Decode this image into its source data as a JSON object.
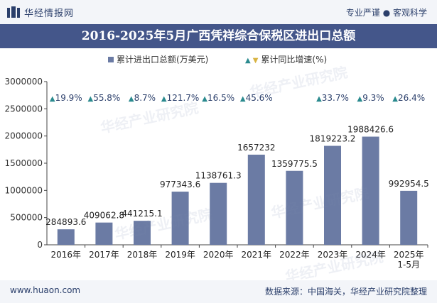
{
  "header": {
    "brand": "华经情报网",
    "slogan": "专业严谨 ● 客观科学"
  },
  "title": "2016-2025年5月广西凭祥综合保税区进出口总额",
  "legend": {
    "bar_label": "累计进出口总额(万美元)",
    "line_label": "累计同比增速(%)"
  },
  "footer": {
    "website": "www.huaon.com",
    "source": "数据来源：中国海关，华经产业研究院整理"
  },
  "watermark": "华经产业研究院",
  "colors": {
    "bar": "#6b7ba4",
    "title_band": "#44568a",
    "triangle": "#2a8a8e"
  },
  "chart_data": {
    "type": "bar",
    "categories": [
      "2016年",
      "2017年",
      "2018年",
      "2019年",
      "2020年",
      "2021年",
      "2022年",
      "2023年",
      "2024年",
      "2025年\n1-5月"
    ],
    "series": [
      {
        "name": "累计进出口总额(万美元)",
        "values": [
          284893.6,
          409062.8,
          441215.1,
          977343.6,
          1138761.3,
          1657232,
          1359775.5,
          1819223.2,
          1988426.6,
          992954.5
        ],
        "labels": [
          "284893.6",
          "409062.8",
          "441215.1",
          "977343.6",
          "1138761.3",
          "1657232",
          "1359775.5",
          "1819223.2",
          "1988426.6",
          "992954.5"
        ]
      },
      {
        "name": "累计同比增速(%)",
        "values": [
          19.9,
          55.8,
          8.7,
          121.7,
          16.5,
          45.6,
          null,
          33.7,
          9.3,
          26.4
        ],
        "labels": [
          "▲19.9%",
          "▲55.8%",
          "▲8.7%",
          "▲121.7%",
          "▲16.5%",
          "▲45.6%",
          "",
          "▲33.7%",
          "▲9.3%",
          "▲26.4%"
        ]
      }
    ],
    "y_ticks": [
      "0",
      "500000",
      "1000000",
      "1500000",
      "2000000",
      "2500000",
      "3000000"
    ],
    "ylim": [
      0,
      3000000
    ],
    "grid": false,
    "legend_position": "top-center"
  }
}
